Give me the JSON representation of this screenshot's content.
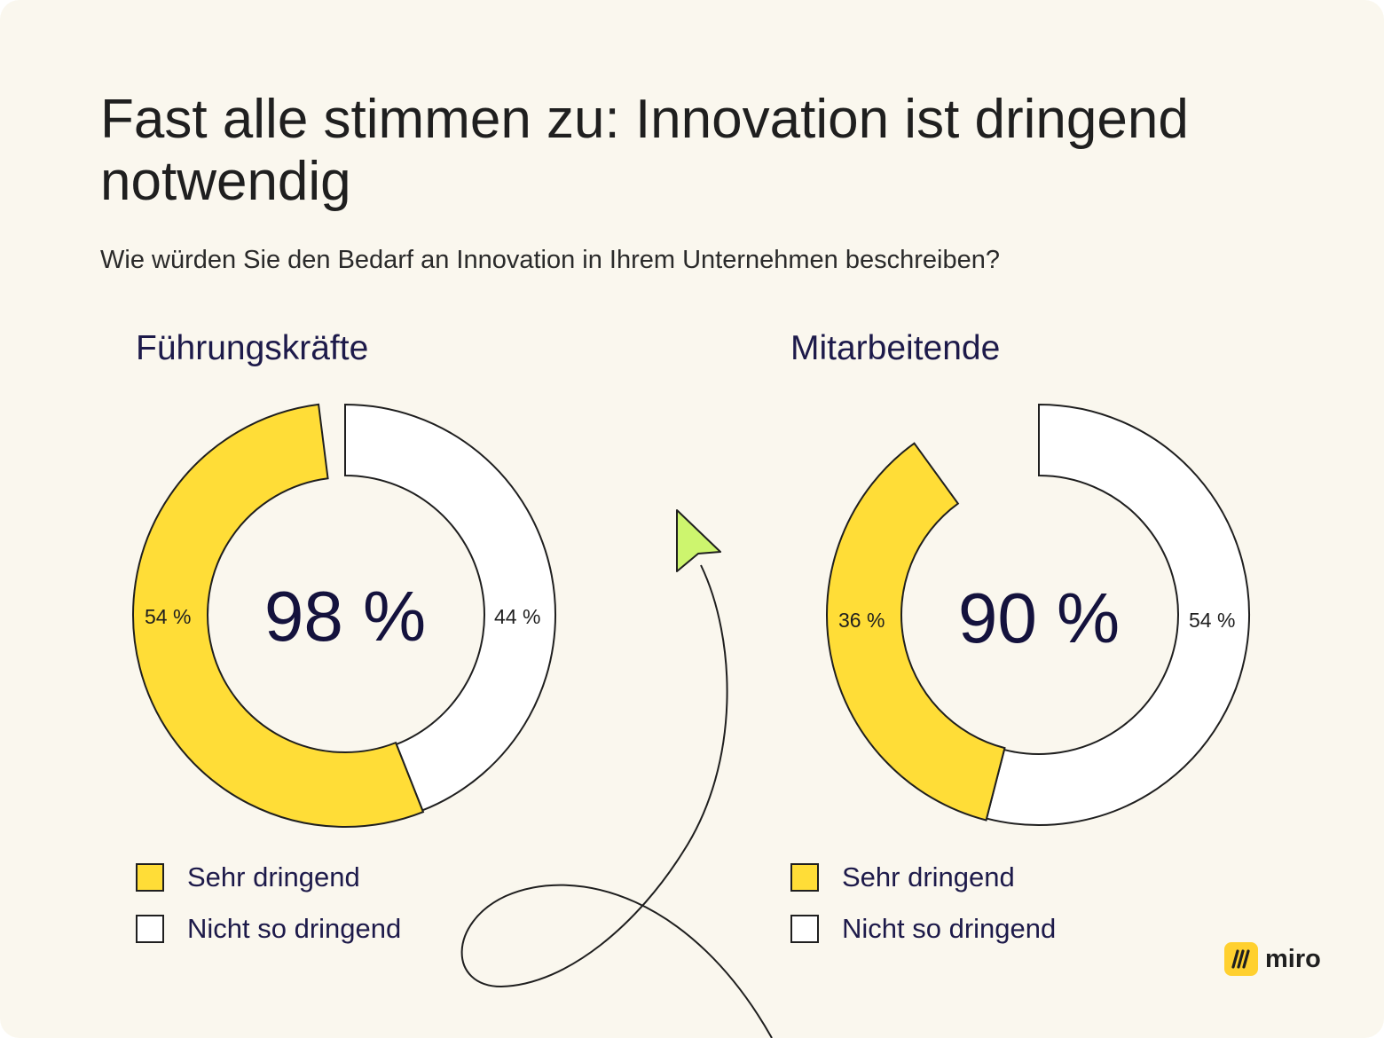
{
  "title": "Fast alle stimmen zu: Innovation ist dringend notwendig",
  "subtitle": "Wie würden Sie den Bedarf an Innovation in Ihrem Unternehmen beschreiben?",
  "colors": {
    "yellow": "#ffdd37",
    "white": "#ffffff",
    "outline": "#1f1f1f",
    "cursor": "#cdf56e",
    "background": "#faf7ee"
  },
  "brand": {
    "name": "miro"
  },
  "chart_data": [
    {
      "type": "pie",
      "variant": "donut",
      "title": "Führungskräfte",
      "center_label": "98 %",
      "slices": [
        {
          "label": "Sehr dringend",
          "value": 54,
          "value_label": "54 %",
          "color": "#ffdd37"
        },
        {
          "label": "Nicht so dringend",
          "value": 44,
          "value_label": "44 %",
          "color": "#ffffff"
        }
      ],
      "legend": [
        {
          "label": "Sehr dringend",
          "color": "#ffdd37"
        },
        {
          "label": "Nicht so dringend",
          "color": "#ffffff"
        }
      ]
    },
    {
      "type": "pie",
      "variant": "donut",
      "title": "Mitarbeitende",
      "center_label": "90 %",
      "slices": [
        {
          "label": "Sehr dringend",
          "value": 36,
          "value_label": "36 %",
          "color": "#ffdd37"
        },
        {
          "label": "Nicht so dringend",
          "value": 54,
          "value_label": "54 %",
          "color": "#ffffff"
        }
      ],
      "legend": [
        {
          "label": "Sehr dringend",
          "color": "#ffdd37"
        },
        {
          "label": "Nicht so dringend",
          "color": "#ffffff"
        }
      ]
    }
  ]
}
